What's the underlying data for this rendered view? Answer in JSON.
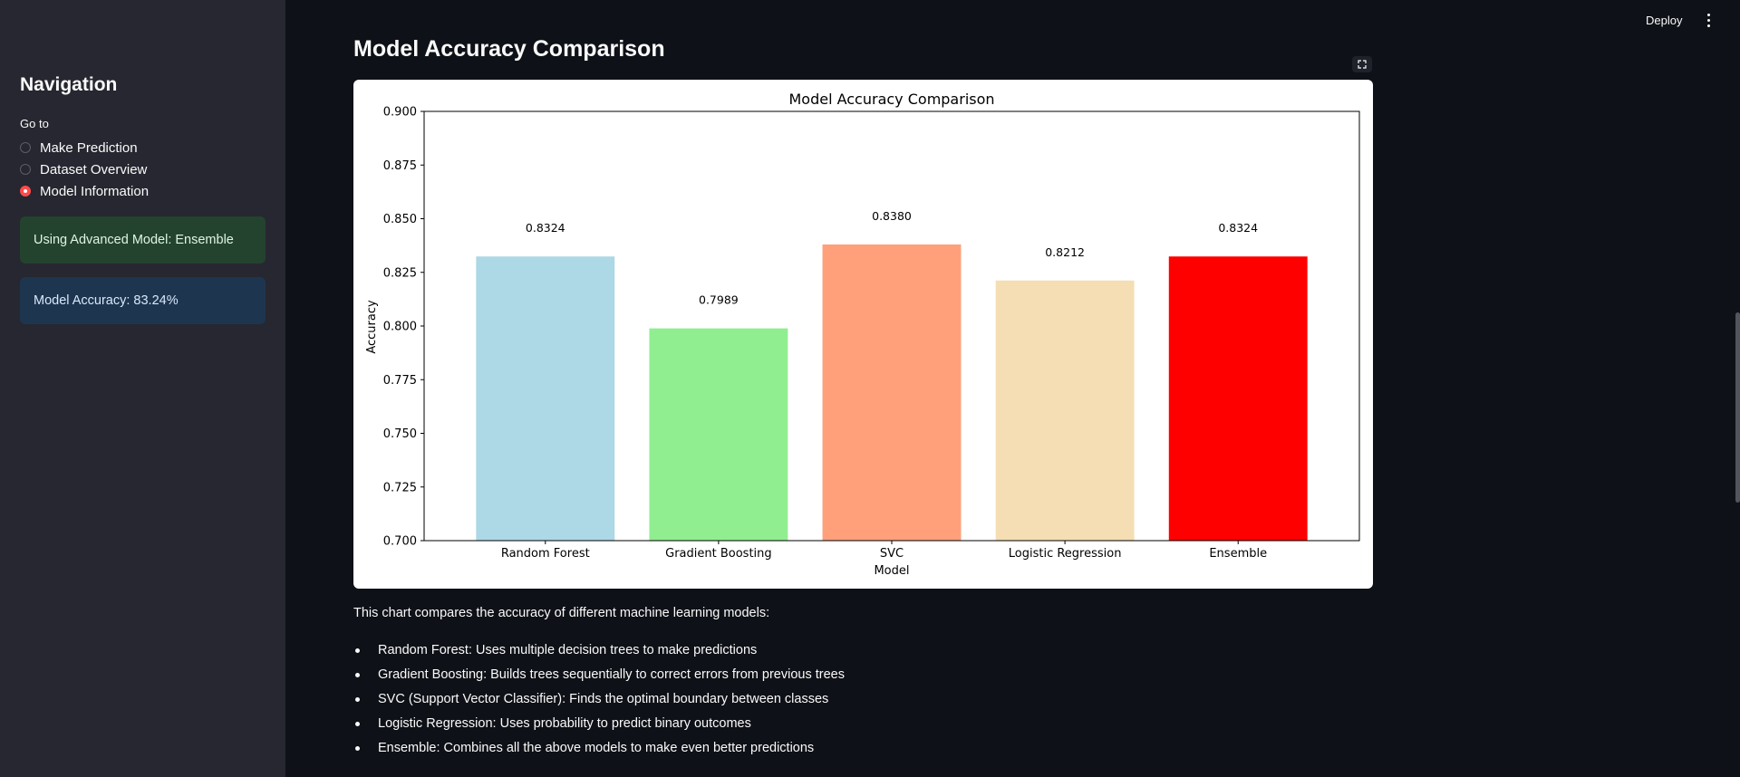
{
  "sidebar": {
    "title": "Navigation",
    "goto_label": "Go to",
    "options": [
      {
        "label": "Make Prediction",
        "selected": false
      },
      {
        "label": "Dataset Overview",
        "selected": false
      },
      {
        "label": "Model Information",
        "selected": true
      }
    ],
    "success_message": "Using Advanced Model: Ensemble",
    "info_message": "Model Accuracy: 83.24%"
  },
  "header": {
    "deploy_label": "Deploy",
    "menu_icon": "vertical-ellipsis-icon"
  },
  "main": {
    "title": "Model Accuracy Comparison",
    "fullscreen_icon": "fullscreen-icon",
    "caption": "This chart compares the accuracy of different machine learning models:",
    "list": [
      "Random Forest: Uses multiple decision trees to make predictions",
      "Gradient Boosting: Builds trees sequentially to correct errors from previous trees",
      "SVC (Support Vector Classifier): Finds the optimal boundary between classes",
      "Logistic Regression: Uses probability to predict binary outcomes",
      "Ensemble: Combines all the above models to make even better predictions"
    ]
  },
  "colors": {
    "accent": "#ff4b4b",
    "background": "#0e1117",
    "sidebar": "#262730"
  },
  "chart_data": {
    "type": "bar",
    "title": "Model Accuracy Comparison",
    "xlabel": "Model",
    "ylabel": "Accuracy",
    "categories": [
      "Random Forest",
      "Gradient Boosting",
      "SVC",
      "Logistic Regression",
      "Ensemble"
    ],
    "values": [
      0.8324,
      0.7989,
      0.838,
      0.8212,
      0.8324
    ],
    "value_labels": [
      "0.8324",
      "0.7989",
      "0.8380",
      "0.8212",
      "0.8324"
    ],
    "colors": [
      "#add8e6",
      "#90ee90",
      "#ffa07a",
      "#f5deb3",
      "#ff0000"
    ],
    "ylim": [
      0.7,
      0.9
    ],
    "yticks": [
      "0.700",
      "0.725",
      "0.750",
      "0.775",
      "0.800",
      "0.825",
      "0.850",
      "0.875",
      "0.900"
    ],
    "grid": false,
    "legend": "none"
  }
}
